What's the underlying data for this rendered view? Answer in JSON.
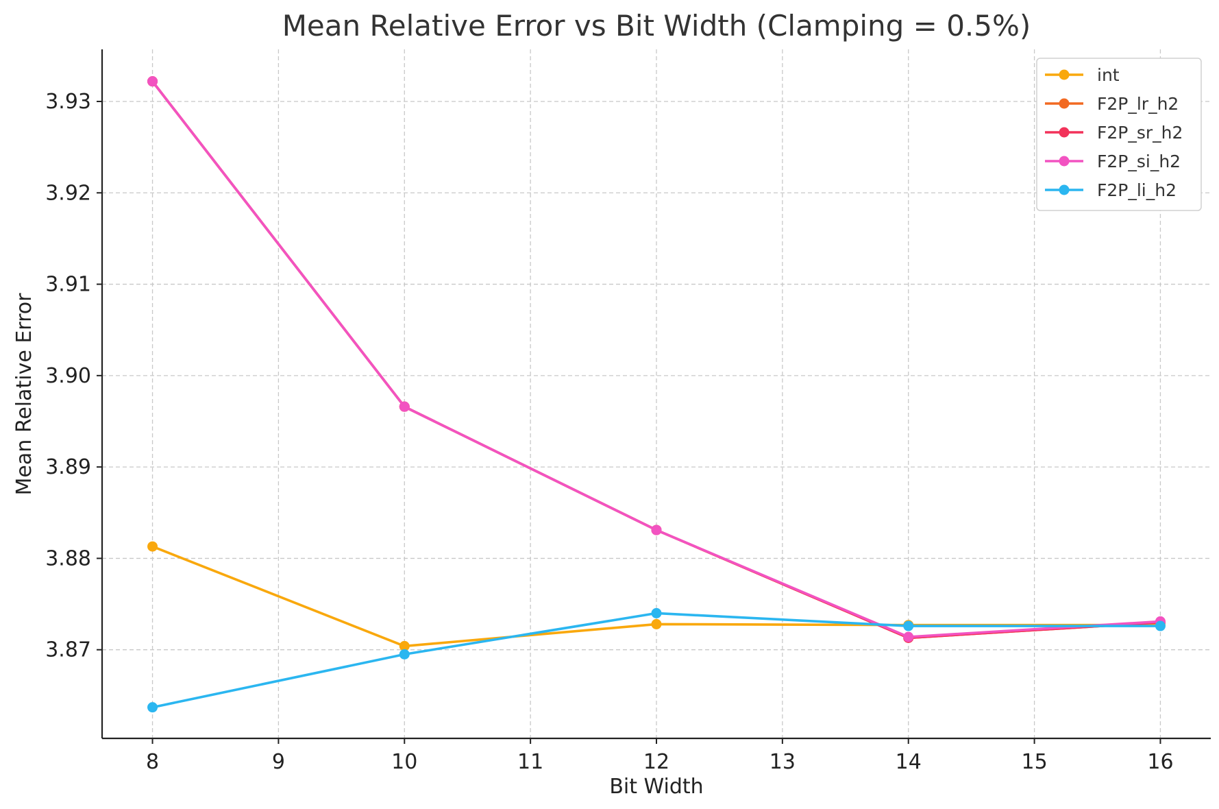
{
  "chart_data": {
    "type": "line",
    "title": "Mean Relative Error vs Bit Width (Clamping = 0.5%)",
    "xlabel": "Bit Width",
    "ylabel": "Mean Relative Error",
    "x": [
      8,
      10,
      12,
      14,
      16
    ],
    "xlim": [
      7.6,
      16.4
    ],
    "ylim": [
      3.8603,
      3.9357
    ],
    "xticks": [
      8,
      9,
      10,
      11,
      12,
      13,
      14,
      15,
      16
    ],
    "yticks": [
      3.87,
      3.88,
      3.89,
      3.9,
      3.91,
      3.92,
      3.93
    ],
    "ytick_labels": [
      "3.87",
      "3.88",
      "3.89",
      "3.90",
      "3.91",
      "3.92",
      "3.93"
    ],
    "grid": true,
    "legend_position": "top-right",
    "series": [
      {
        "name": "int",
        "color": "#F9A80D",
        "values": [
          3.8813,
          3.8704,
          3.8728,
          3.8727,
          3.8727
        ]
      },
      {
        "name": "F2P_lr_h2",
        "color": "#F26A22",
        "values": [
          3.9322,
          3.8966,
          3.8831,
          3.8713,
          3.873
        ]
      },
      {
        "name": "F2P_sr_h2",
        "color": "#F2325A",
        "values": [
          3.9322,
          3.8966,
          3.8831,
          3.8713,
          3.873
        ]
      },
      {
        "name": "F2P_si_h2",
        "color": "#F253C1",
        "values": [
          3.9322,
          3.8966,
          3.8831,
          3.8714,
          3.8731
        ]
      },
      {
        "name": "F2P_li_h2",
        "color": "#2BB6F0",
        "values": [
          3.8637,
          3.8695,
          3.874,
          3.8726,
          3.8726
        ]
      }
    ]
  }
}
